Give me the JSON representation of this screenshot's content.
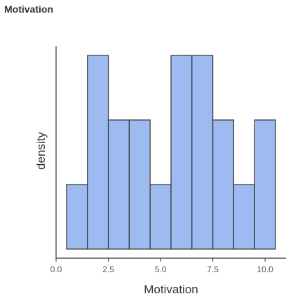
{
  "panel": {
    "title": "Motivation"
  },
  "chart_data": {
    "type": "bar",
    "title": "",
    "xlabel": "Motivation",
    "ylabel": "density",
    "x_ticks": [
      0.0,
      2.5,
      5.0,
      7.5,
      10.0
    ],
    "x_tick_labels": [
      "0.0",
      "2.5",
      "5.0",
      "7.5",
      "10.0"
    ],
    "xlim": [
      0.0,
      11.0
    ],
    "ylim": [
      0,
      3
    ],
    "bin_edges": [
      0.5,
      1.5,
      2.5,
      3.5,
      4.5,
      5.5,
      6.5,
      7.5,
      8.5,
      9.5,
      10.5
    ],
    "values": [
      1,
      3,
      2,
      2,
      1,
      3,
      3,
      2,
      1,
      2
    ],
    "bar_color": "#9DBBF0",
    "bar_edge_color": "#333333",
    "grid": false,
    "y_tick_labels_shown": false
  }
}
